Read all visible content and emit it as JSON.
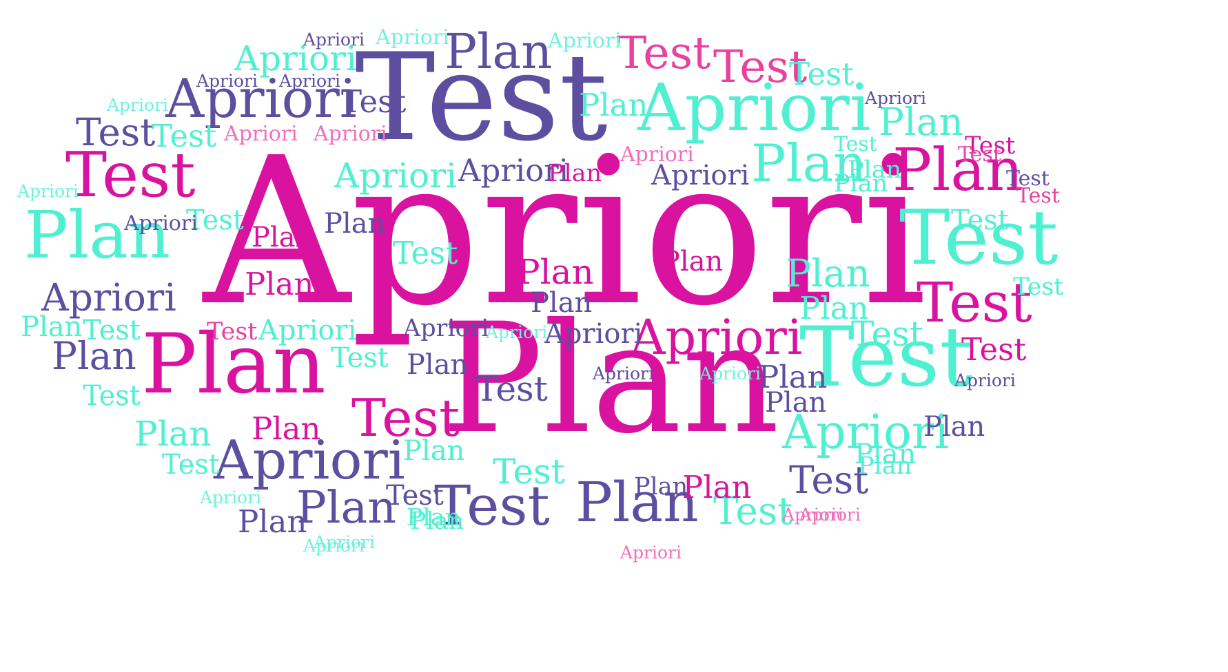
{
  "palette": {
    "magenta": "#d9139f",
    "pink": "#e8419f",
    "purple": "#5d4ea0",
    "aqua": "#4ff0d2",
    "lightpink": "#f06fbd",
    "lightaqua": "#6ff2dc"
  },
  "words": [
    {
      "text": "Apriori",
      "color": "magenta"
    },
    {
      "text": "Plan",
      "color": "magenta"
    },
    {
      "text": "Test",
      "color": "purple"
    },
    {
      "text": "Plan",
      "color": "magenta"
    },
    {
      "text": "Test",
      "color": "aqua"
    },
    {
      "text": "Apriori",
      "color": "aqua"
    },
    {
      "text": "Apriori",
      "color": "purple"
    },
    {
      "text": "Apriori",
      "color": "purple"
    },
    {
      "text": "Plan",
      "color": "aqua"
    },
    {
      "text": "Test",
      "color": "magenta"
    },
    {
      "text": "Plan",
      "color": "purple"
    },
    {
      "text": "Test",
      "color": "purple"
    },
    {
      "text": "Plan",
      "color": "magenta"
    },
    {
      "text": "Test",
      "color": "aqua"
    },
    {
      "text": "Plan",
      "color": "aqua"
    },
    {
      "text": "Test",
      "color": "magenta"
    },
    {
      "text": "Test",
      "color": "magenta"
    },
    {
      "text": "Test",
      "color": "pink"
    },
    {
      "text": "Test",
      "color": "pink"
    },
    {
      "text": "Apriori",
      "color": "magenta"
    },
    {
      "text": "Apriori",
      "color": "aqua"
    },
    {
      "text": "Apriori",
      "color": "aqua"
    },
    {
      "text": "Apriori",
      "color": "purple"
    },
    {
      "text": "Test",
      "color": "purple"
    },
    {
      "text": "Test",
      "color": "magenta"
    },
    {
      "text": "Test",
      "color": "aqua"
    },
    {
      "text": "Test",
      "color": "purple"
    },
    {
      "text": "Plan",
      "color": "purple"
    },
    {
      "text": "Plan",
      "color": "aqua"
    },
    {
      "text": "Plan",
      "color": "aqua"
    },
    {
      "text": "Plan",
      "color": "purple"
    },
    {
      "text": "Plan",
      "color": "magenta"
    },
    {
      "text": "Apriori",
      "color": "aqua"
    },
    {
      "text": "Apriori",
      "color": "purple"
    },
    {
      "text": "Apriori",
      "color": "purple"
    },
    {
      "text": "Apriori",
      "color": "aqua"
    },
    {
      "text": "Apriori",
      "color": "purple"
    },
    {
      "text": "Test",
      "color": "aqua"
    },
    {
      "text": "Test",
      "color": "purple"
    },
    {
      "text": "Test",
      "color": "aqua"
    },
    {
      "text": "Test",
      "color": "aqua"
    },
    {
      "text": "Test",
      "color": "aqua"
    },
    {
      "text": "Test",
      "color": "magenta"
    },
    {
      "text": "Test",
      "color": "purple"
    },
    {
      "text": "Test",
      "color": "aqua"
    },
    {
      "text": "Test",
      "color": "aqua"
    },
    {
      "text": "Test",
      "color": "aqua"
    },
    {
      "text": "Test",
      "color": "pink"
    },
    {
      "text": "Test",
      "color": "aqua"
    },
    {
      "text": "Test",
      "color": "pink"
    },
    {
      "text": "Test",
      "color": "purple"
    },
    {
      "text": "Test",
      "color": "aqua"
    },
    {
      "text": "Test",
      "color": "purple"
    },
    {
      "text": "Test",
      "color": "pink"
    },
    {
      "text": "Test",
      "color": "aqua"
    },
    {
      "text": "Test",
      "color": "aqua"
    },
    {
      "text": "Test",
      "color": "aqua"
    },
    {
      "text": "Test",
      "color": "aqua"
    },
    {
      "text": "Plan",
      "color": "purple"
    },
    {
      "text": "Plan",
      "color": "aqua"
    },
    {
      "text": "Plan",
      "color": "aqua"
    },
    {
      "text": "Plan",
      "color": "aqua"
    },
    {
      "text": "Plan",
      "color": "magenta"
    },
    {
      "text": "Plan",
      "color": "magenta"
    },
    {
      "text": "Plan",
      "color": "magenta"
    },
    {
      "text": "Plan",
      "color": "purple"
    },
    {
      "text": "Plan",
      "color": "aqua"
    },
    {
      "text": "Plan",
      "color": "magenta"
    },
    {
      "text": "Plan",
      "color": "purple"
    },
    {
      "text": "Plan",
      "color": "aqua"
    },
    {
      "text": "Plan",
      "color": "magenta"
    },
    {
      "text": "Plan",
      "color": "purple"
    },
    {
      "text": "Plan",
      "color": "purple"
    },
    {
      "text": "Plan",
      "color": "purple"
    },
    {
      "text": "Plan",
      "color": "aqua"
    },
    {
      "text": "Plan",
      "color": "purple"
    },
    {
      "text": "Plan",
      "color": "aqua"
    },
    {
      "text": "Plan",
      "color": "aqua"
    },
    {
      "text": "Plan",
      "color": "purple"
    },
    {
      "text": "Plan",
      "color": "aqua"
    },
    {
      "text": "Plan",
      "color": "magenta"
    },
    {
      "text": "Plan",
      "color": "purple"
    },
    {
      "text": "Plan",
      "color": "aqua"
    },
    {
      "text": "Plan",
      "color": "aqua"
    },
    {
      "text": "Apriori",
      "color": "lightaqua"
    },
    {
      "text": "Apriori",
      "color": "purple"
    },
    {
      "text": "Apriori",
      "color": "lightaqua"
    },
    {
      "text": "Apriori",
      "color": "lightaqua"
    },
    {
      "text": "Apriori",
      "color": "purple"
    },
    {
      "text": "Apriori",
      "color": "lightpink"
    },
    {
      "text": "Apriori",
      "color": "lightpink"
    },
    {
      "text": "Apriori",
      "color": "lightpink"
    },
    {
      "text": "Apriori",
      "color": "lightaqua"
    },
    {
      "text": "Apriori",
      "color": "purple"
    },
    {
      "text": "Apriori",
      "color": "purple"
    },
    {
      "text": "Apriori",
      "color": "purple"
    },
    {
      "text": "Apriori",
      "color": "purple"
    },
    {
      "text": "Apriori",
      "color": "lightaqua"
    },
    {
      "text": "Apriori",
      "color": "purple"
    },
    {
      "text": "Apriori",
      "color": "lightaqua"
    },
    {
      "text": "Apriori",
      "color": "lightpink"
    },
    {
      "text": "Apriori",
      "color": "lightaqua"
    },
    {
      "text": "Apriori",
      "color": "lightpink"
    },
    {
      "text": "Apriori",
      "color": "lightaqua"
    },
    {
      "text": "Apriori",
      "color": "purple"
    },
    {
      "text": "Apriori",
      "color": "lightpink"
    },
    {
      "text": "Apriori",
      "color": "lightaqua"
    }
  ]
}
